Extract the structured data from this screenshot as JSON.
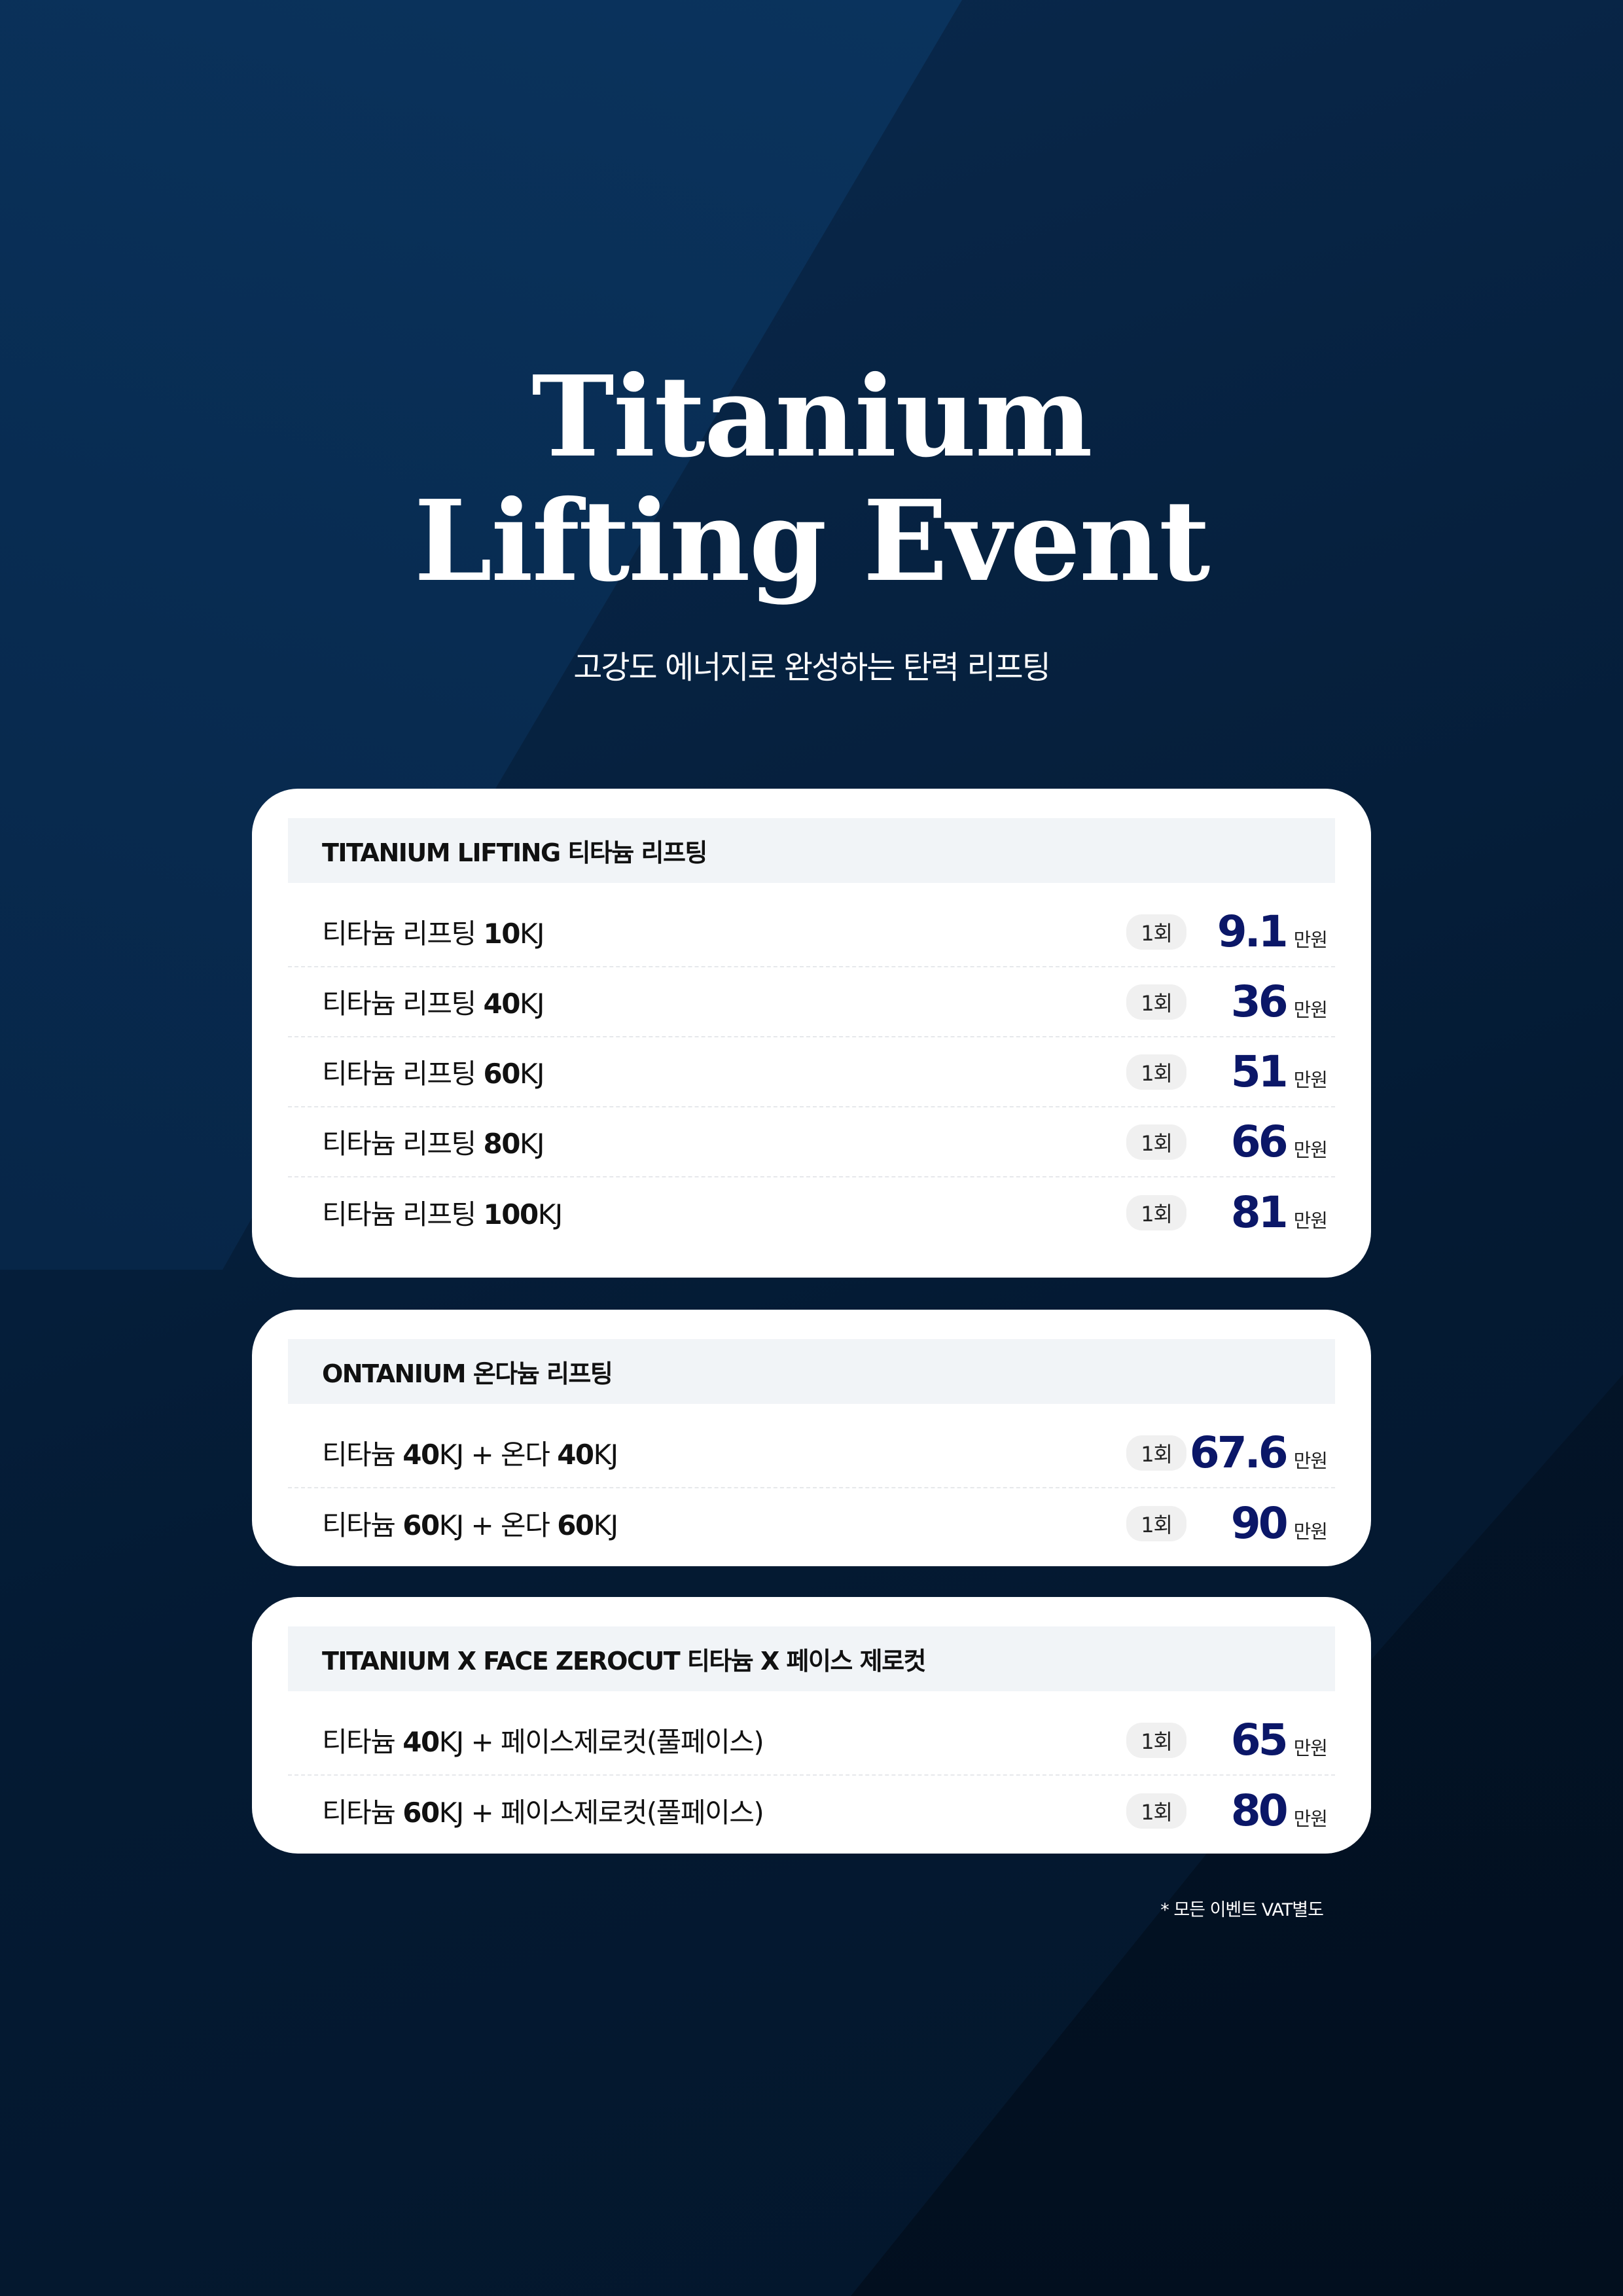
{
  "header": {
    "title_line1": "Titanium",
    "title_line2": "Lifting Event",
    "subtitle": "고강도 에너지로 완성하는 탄력 리프팅"
  },
  "colors": {
    "price": "#0b1768",
    "header_band": "#f1f4f7",
    "background": "#041a33"
  },
  "sections": [
    {
      "title": "TITANIUM LIFTING 티타늄 리프팅",
      "items": [
        {
          "prefix": "티타늄 리프팅 ",
          "bold": "10",
          "suffix": "KJ",
          "bold2": "",
          "suffix2": "",
          "sessions": "1회",
          "price": "9.1",
          "unit": "만원"
        },
        {
          "prefix": "티타늄 리프팅 ",
          "bold": "40",
          "suffix": "KJ",
          "bold2": "",
          "suffix2": "",
          "sessions": "1회",
          "price": "36",
          "unit": "만원"
        },
        {
          "prefix": "티타늄 리프팅 ",
          "bold": "60",
          "suffix": "KJ",
          "bold2": "",
          "suffix2": "",
          "sessions": "1회",
          "price": "51",
          "unit": "만원"
        },
        {
          "prefix": "티타늄 리프팅 ",
          "bold": "80",
          "suffix": "KJ",
          "bold2": "",
          "suffix2": "",
          "sessions": "1회",
          "price": "66",
          "unit": "만원"
        },
        {
          "prefix": "티타늄 리프팅 ",
          "bold": "100",
          "suffix": "KJ",
          "bold2": "",
          "suffix2": "",
          "sessions": "1회",
          "price": "81",
          "unit": "만원"
        }
      ]
    },
    {
      "title": "ONTANIUM 온다늄 리프팅",
      "items": [
        {
          "prefix": "티타늄 ",
          "bold": "40",
          "suffix": "KJ + 온다 ",
          "bold2": "40",
          "suffix2": "KJ",
          "sessions": "1회",
          "price": "67.6",
          "unit": "만원"
        },
        {
          "prefix": "티타늄 ",
          "bold": "60",
          "suffix": "KJ + 온다 ",
          "bold2": "60",
          "suffix2": "KJ",
          "sessions": "1회",
          "price": "90",
          "unit": "만원"
        }
      ]
    },
    {
      "title": "TITANIUM X FACE ZEROCUT  티타늄 X 페이스 제로컷",
      "items": [
        {
          "prefix": "티타늄 ",
          "bold": "40",
          "suffix": "KJ + 페이스제로컷(풀페이스)",
          "bold2": "",
          "suffix2": "",
          "sessions": "1회",
          "price": "65",
          "unit": "만원"
        },
        {
          "prefix": "티타늄 ",
          "bold": "60",
          "suffix": "KJ + 페이스제로컷(풀페이스)",
          "bold2": "",
          "suffix2": "",
          "sessions": "1회",
          "price": "80",
          "unit": "만원"
        }
      ]
    }
  ],
  "footnote": "* 모든 이벤트 VAT별도"
}
